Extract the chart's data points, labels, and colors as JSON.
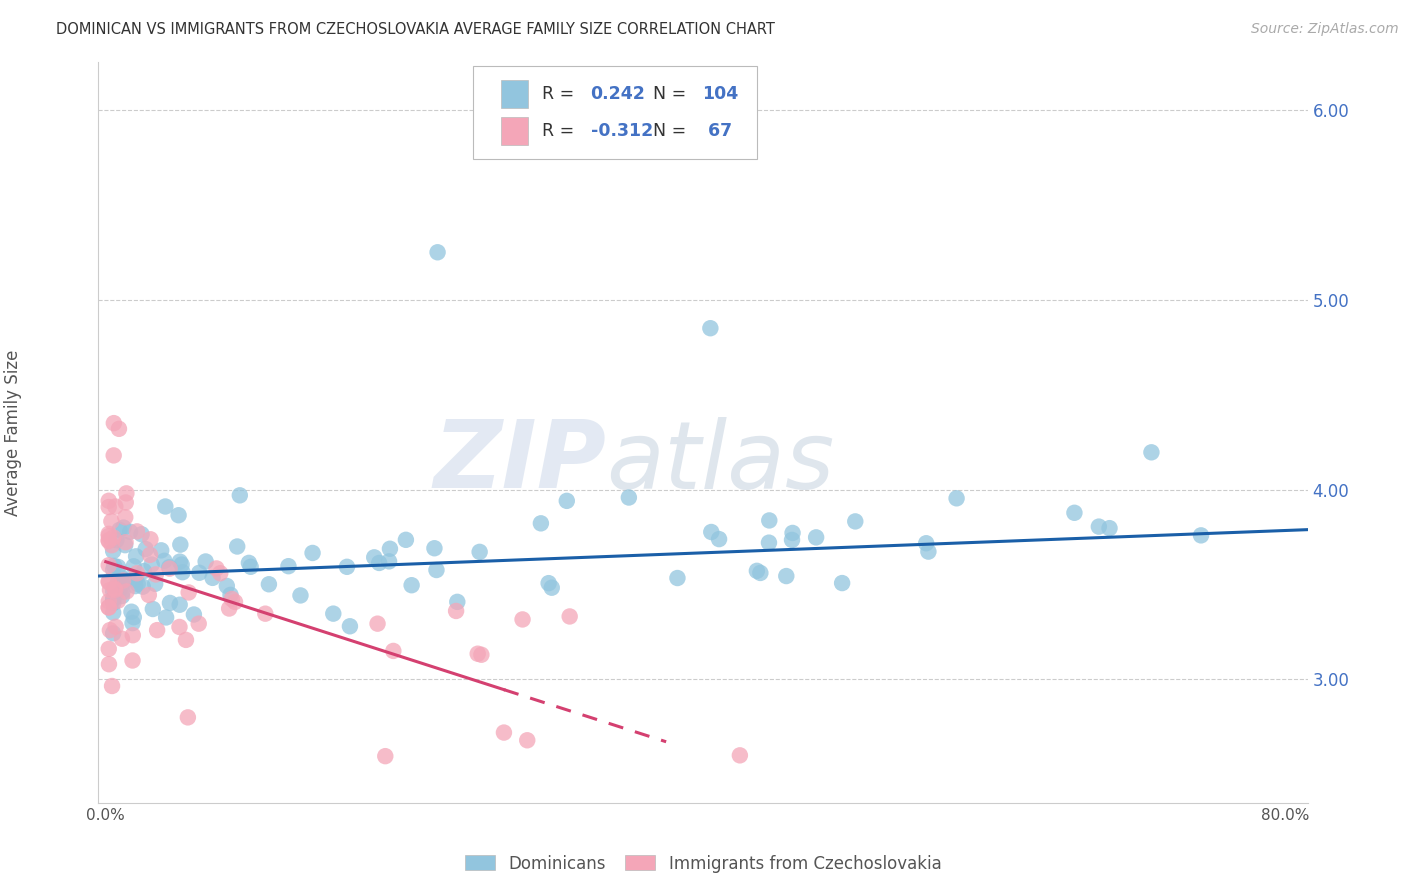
{
  "title": "DOMINICAN VS IMMIGRANTS FROM CZECHOSLOVAKIA AVERAGE FAMILY SIZE CORRELATION CHART",
  "source": "Source: ZipAtlas.com",
  "ylabel": "Average Family Size",
  "legend_label_1": "Dominicans",
  "legend_label_2": "Immigrants from Czechoslovakia",
  "R1": 0.242,
  "N1": 104,
  "R2": -0.312,
  "N2": 67,
  "xlim": [
    -0.005,
    0.815
  ],
  "ylim": [
    2.35,
    6.25
  ],
  "yticks": [
    3.0,
    4.0,
    5.0,
    6.0
  ],
  "color_blue": "#92c5de",
  "color_pink": "#f4a6b8",
  "line_blue": "#1a5fa8",
  "line_pink": "#d44070",
  "watermark_zip": "ZIP",
  "watermark_atlas": "atlas",
  "seed_blue": 42,
  "seed_pink": 99
}
